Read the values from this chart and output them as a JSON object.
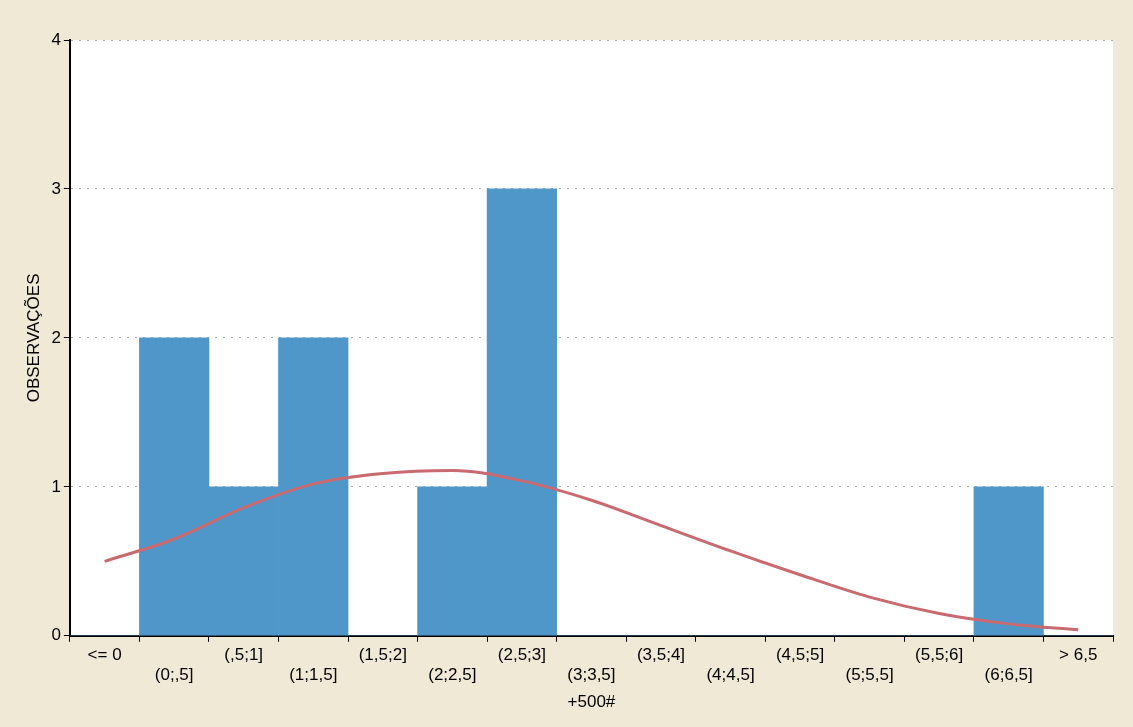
{
  "chart_data": {
    "type": "bar",
    "xlabel": "+500#",
    "ylabel": "OBSERVAÇÕES",
    "categories": [
      "<= 0",
      "(0;,5]",
      "(,5;1]",
      "(1;1,5]",
      "(1,5;2]",
      "(2;2,5]",
      "(2,5;3]",
      "(3;3,5]",
      "(3,5;4]",
      "(4;4,5]",
      "(4,5;5]",
      "(5;5,5]",
      "(5,5;6]",
      "(6;6,5]",
      "> 6,5"
    ],
    "series": [
      {
        "color": "#4f97c8",
        "values": [
          0,
          2,
          1,
          2,
          0,
          1,
          3,
          0,
          0,
          0,
          0,
          0,
          0,
          1,
          0
        ]
      },
      {
        "type": "line",
        "color": "#c86a70",
        "values": [
          0.5,
          0.65,
          0.86,
          1.02,
          1.09,
          1.11,
          1.04,
          0.91,
          0.74,
          0.57,
          0.41,
          0.26,
          0.15,
          0.08,
          0.04
        ]
      }
    ],
    "ylim": [
      0,
      4
    ],
    "yticks": [
      0,
      1,
      2,
      3,
      4
    ],
    "grid": "y",
    "legend": false,
    "marker": "none"
  }
}
